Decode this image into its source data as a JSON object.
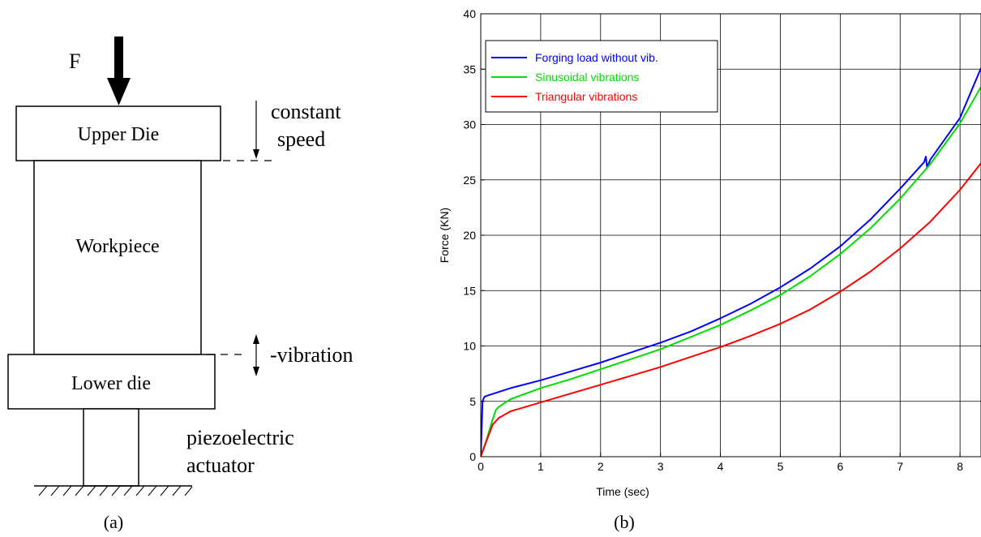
{
  "panel_a": {
    "force_label": "F",
    "upper_die": "Upper Die",
    "workpiece": "Workpiece",
    "lower_die": "Lower die",
    "constant_speed_line1": "constant",
    "constant_speed_line2": "speed",
    "vibration_label": "-vibration",
    "actuator_line1": "piezoelectric",
    "actuator_line2": "actuator",
    "caption": "(a)"
  },
  "panel_b": {
    "caption": "(b)"
  },
  "chart_data": {
    "type": "line",
    "title": "",
    "xlabel": "Time (sec)",
    "ylabel": "Force (KN)",
    "xlim": [
      0,
      8.35
    ],
    "ylim": [
      0,
      40
    ],
    "xticks": [
      "0",
      "1",
      "2",
      "3",
      "4",
      "5",
      "6",
      "7",
      "8"
    ],
    "yticks": [
      "0",
      "5",
      "10",
      "15",
      "20",
      "25",
      "30",
      "35",
      "40"
    ],
    "grid": true,
    "legend_position": "top-left",
    "series": [
      {
        "name": "Forging load without vib.",
        "color": "#0000ff",
        "x": [
          0,
          0.03,
          0.06,
          0.1,
          0.5,
          1,
          1.5,
          2,
          2.5,
          3,
          3.5,
          4,
          4.5,
          5,
          5.5,
          6,
          6.5,
          7,
          7.4,
          7.43,
          7.45,
          7.5,
          8,
          8.35
        ],
        "y": [
          0,
          5.0,
          5.4,
          5.5,
          6.2,
          6.9,
          7.7,
          8.5,
          9.4,
          10.3,
          11.3,
          12.5,
          13.8,
          15.3,
          17.0,
          19.0,
          21.4,
          24.2,
          26.6,
          27.1,
          26.1,
          26.8,
          30.6,
          35.1
        ]
      },
      {
        "name": "Sinusoidal vibrations",
        "color": "#00dd00",
        "x": [
          0,
          0.1,
          0.2,
          0.25,
          0.3,
          0.5,
          1,
          1.5,
          2,
          2.5,
          3,
          3.5,
          4,
          4.5,
          5,
          5.5,
          6,
          6.5,
          7,
          7.5,
          8,
          8.35
        ],
        "y": [
          0,
          1.6,
          3.4,
          4.2,
          4.5,
          5.2,
          6.2,
          7.0,
          7.9,
          8.8,
          9.7,
          10.8,
          11.9,
          13.2,
          14.6,
          16.3,
          18.3,
          20.6,
          23.3,
          26.4,
          30.1,
          33.4
        ]
      },
      {
        "name": "Triangular vibrations",
        "color": "#ff0000",
        "x": [
          0,
          0.1,
          0.2,
          0.3,
          0.5,
          1,
          1.5,
          2,
          2.5,
          3,
          3.5,
          4,
          4.5,
          5,
          5.5,
          6,
          6.5,
          7,
          7.5,
          8,
          8.35
        ],
        "y": [
          0,
          1.5,
          2.9,
          3.5,
          4.1,
          4.9,
          5.7,
          6.5,
          7.3,
          8.1,
          9.0,
          9.9,
          10.9,
          12.0,
          13.3,
          14.9,
          16.7,
          18.8,
          21.2,
          24.1,
          26.5
        ]
      }
    ]
  }
}
